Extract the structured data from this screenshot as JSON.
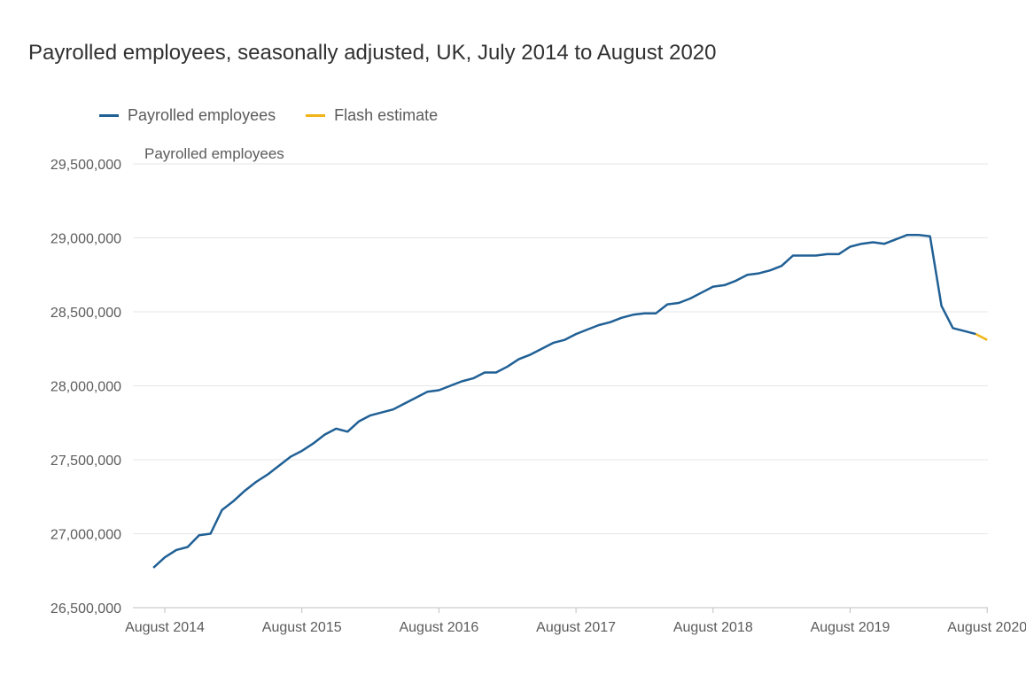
{
  "chart_data": {
    "type": "line",
    "title": "Payrolled employees, seasonally adjusted, UK, July 2014 to August 2020",
    "ylabel": "Payrolled employees",
    "xlabel": "",
    "ylim": [
      26500000,
      29500000
    ],
    "y_ticks": [
      "26,500,000",
      "27,000,000",
      "27,500,000",
      "28,000,000",
      "28,500,000",
      "29,000,000",
      "29,500,000"
    ],
    "y_tick_values": [
      26500000,
      27000000,
      27500000,
      28000000,
      28500000,
      29000000,
      29500000
    ],
    "x_ticks": [
      "August 2014",
      "August 2015",
      "August 2016",
      "August 2017",
      "August 2018",
      "August 2019",
      "August 2020"
    ],
    "grid": true,
    "legend_position": "top-left",
    "series": [
      {
        "name": "Payrolled employees",
        "color": "#206095",
        "start": "July 2014",
        "values": [
          26770000,
          26840000,
          26890000,
          26910000,
          26990000,
          27000000,
          27160000,
          27220000,
          27290000,
          27350000,
          27400000,
          27460000,
          27520000,
          27560000,
          27610000,
          27670000,
          27710000,
          27690000,
          27760000,
          27800000,
          27820000,
          27840000,
          27880000,
          27920000,
          27960000,
          27970000,
          28000000,
          28030000,
          28050000,
          28090000,
          28090000,
          28130000,
          28180000,
          28210000,
          28250000,
          28290000,
          28310000,
          28350000,
          28380000,
          28410000,
          28430000,
          28460000,
          28480000,
          28490000,
          28490000,
          28550000,
          28560000,
          28590000,
          28630000,
          28670000,
          28680000,
          28710000,
          28750000,
          28760000,
          28780000,
          28810000,
          28880000,
          28880000,
          28880000,
          28890000,
          28890000,
          28940000,
          28960000,
          28970000,
          28960000,
          28990000,
          29020000,
          29020000,
          29010000,
          28540000,
          28390000,
          28370000,
          28350000
        ]
      },
      {
        "name": "Flash estimate",
        "color": "#f0b416",
        "start": "July 2020",
        "values": [
          28350000,
          28310000
        ]
      }
    ]
  }
}
